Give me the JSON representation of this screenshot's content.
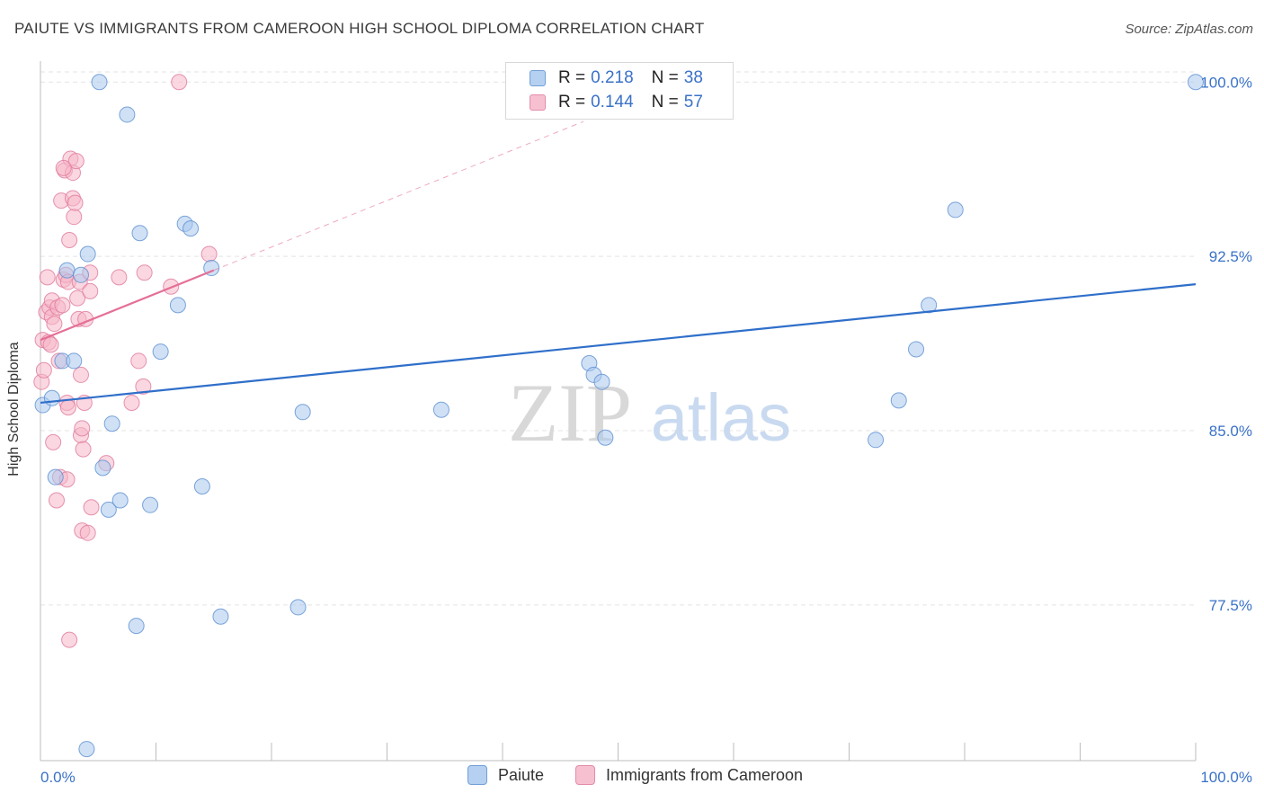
{
  "title": "PAIUTE VS IMMIGRANTS FROM CAMEROON HIGH SCHOOL DIPLOMA CORRELATION CHART",
  "source": "Source: ZipAtlas.com",
  "watermark": {
    "zip": "ZIP",
    "atlas": "atlas"
  },
  "legend": {
    "r_label": "R =",
    "n_label": "N =",
    "entries": [
      {
        "r": "0.218",
        "n": "38"
      },
      {
        "r": "0.144",
        "n": "57"
      }
    ]
  },
  "bottom_legend": [
    "Paiute",
    "Immigrants from Cameroon"
  ],
  "colors": {
    "blue_fill": "#a9c8ee",
    "blue_stroke": "#5b8fd1",
    "blue_line": "#2f6fca",
    "pink_fill": "#f5b6c8",
    "pink_stroke": "#e0799b",
    "pink_line": "#e56f96",
    "grid": "#e3e3e3",
    "axis_text": "#3a72c8"
  },
  "chart_data": {
    "type": "scatter",
    "title": "PAIUTE VS IMMIGRANTS FROM CAMEROON HIGH SCHOOL DIPLOMA CORRELATION CHART",
    "xlabel": "",
    "ylabel": "High School Diploma",
    "xlim": [
      0,
      100
    ],
    "ylim": [
      70.8,
      100.9
    ],
    "x_tick_labels": [
      "0.0%",
      "100.0%"
    ],
    "y_ticks": [
      100.0,
      92.5,
      85.0,
      77.5
    ],
    "y_tick_labels": [
      "100.0%",
      "92.5%",
      "85.0%",
      "77.5%"
    ],
    "series": [
      {
        "name": "Paiute",
        "r": 0.218,
        "n": 38,
        "trend": {
          "x0": 0,
          "y0": 86.2,
          "x1": 100,
          "y1": 91.3
        },
        "points": [
          [
            0.2,
            86.1
          ],
          [
            1.0,
            86.4
          ],
          [
            1.3,
            83.0
          ],
          [
            1.9,
            88.0
          ],
          [
            2.3,
            91.9
          ],
          [
            2.9,
            88.0
          ],
          [
            3.5,
            91.7
          ],
          [
            4.1,
            92.6
          ],
          [
            5.1,
            100.0
          ],
          [
            5.4,
            83.4
          ],
          [
            5.9,
            81.6
          ],
          [
            6.2,
            85.3
          ],
          [
            6.9,
            82.0
          ],
          [
            7.5,
            98.6
          ],
          [
            8.3,
            76.6
          ],
          [
            8.6,
            93.5
          ],
          [
            9.5,
            81.8
          ],
          [
            10.4,
            88.4
          ],
          [
            11.9,
            90.4
          ],
          [
            12.5,
            93.9
          ],
          [
            13.0,
            93.7
          ],
          [
            14.0,
            82.6
          ],
          [
            14.8,
            92.0
          ],
          [
            15.6,
            77.0
          ],
          [
            22.3,
            77.4
          ],
          [
            22.7,
            85.8
          ],
          [
            34.7,
            85.9
          ],
          [
            4.0,
            71.3
          ],
          [
            47.5,
            87.9
          ],
          [
            47.9,
            87.4
          ],
          [
            48.6,
            87.1
          ],
          [
            48.9,
            84.7
          ],
          [
            72.3,
            84.6
          ],
          [
            74.3,
            86.3
          ],
          [
            75.8,
            88.5
          ],
          [
            76.9,
            90.4
          ],
          [
            79.2,
            94.5
          ],
          [
            100.0,
            100.0
          ]
        ]
      },
      {
        "name": "Immigrants from Cameroon",
        "r": 0.144,
        "n": 57,
        "trend": {
          "x0": 0,
          "y0": 88.9,
          "x1": 15,
          "y1": 91.9
        },
        "trend_extension": {
          "x0": 15,
          "y0": 91.9,
          "x1": 47,
          "y1": 98.3
        },
        "points": [
          [
            0.1,
            87.1
          ],
          [
            0.2,
            88.9
          ],
          [
            0.3,
            87.6
          ],
          [
            0.5,
            90.1
          ],
          [
            0.6,
            91.6
          ],
          [
            0.7,
            88.8
          ],
          [
            0.8,
            90.3
          ],
          [
            1.0,
            89.9
          ],
          [
            1.0,
            90.6
          ],
          [
            1.1,
            84.5
          ],
          [
            1.2,
            89.6
          ],
          [
            1.4,
            82.0
          ],
          [
            1.5,
            90.3
          ],
          [
            1.6,
            88.0
          ],
          [
            1.7,
            83.0
          ],
          [
            1.8,
            94.9
          ],
          [
            2.0,
            91.5
          ],
          [
            2.1,
            96.2
          ],
          [
            2.2,
            91.7
          ],
          [
            2.3,
            82.9
          ],
          [
            2.3,
            86.2
          ],
          [
            2.4,
            91.4
          ],
          [
            2.4,
            86.0
          ],
          [
            2.5,
            93.2
          ],
          [
            2.6,
            96.7
          ],
          [
            2.8,
            96.1
          ],
          [
            2.8,
            95.0
          ],
          [
            2.9,
            94.2
          ],
          [
            3.0,
            94.8
          ],
          [
            3.1,
            96.6
          ],
          [
            3.2,
            90.7
          ],
          [
            3.3,
            89.8
          ],
          [
            3.4,
            91.4
          ],
          [
            3.5,
            87.4
          ],
          [
            3.5,
            84.8
          ],
          [
            3.6,
            85.1
          ],
          [
            3.6,
            80.7
          ],
          [
            3.7,
            84.2
          ],
          [
            3.8,
            86.2
          ],
          [
            3.9,
            89.8
          ],
          [
            4.1,
            80.6
          ],
          [
            4.3,
            91.0
          ],
          [
            4.3,
            91.8
          ],
          [
            4.4,
            81.7
          ],
          [
            5.7,
            83.6
          ],
          [
            6.8,
            91.6
          ],
          [
            7.9,
            86.2
          ],
          [
            8.5,
            88.0
          ],
          [
            8.9,
            86.9
          ],
          [
            9.0,
            91.8
          ],
          [
            11.3,
            91.2
          ],
          [
            12.0,
            100.0
          ],
          [
            14.6,
            92.6
          ],
          [
            2.5,
            76.0
          ],
          [
            2.0,
            96.3
          ],
          [
            1.9,
            90.4
          ],
          [
            0.9,
            88.7
          ]
        ]
      }
    ]
  }
}
